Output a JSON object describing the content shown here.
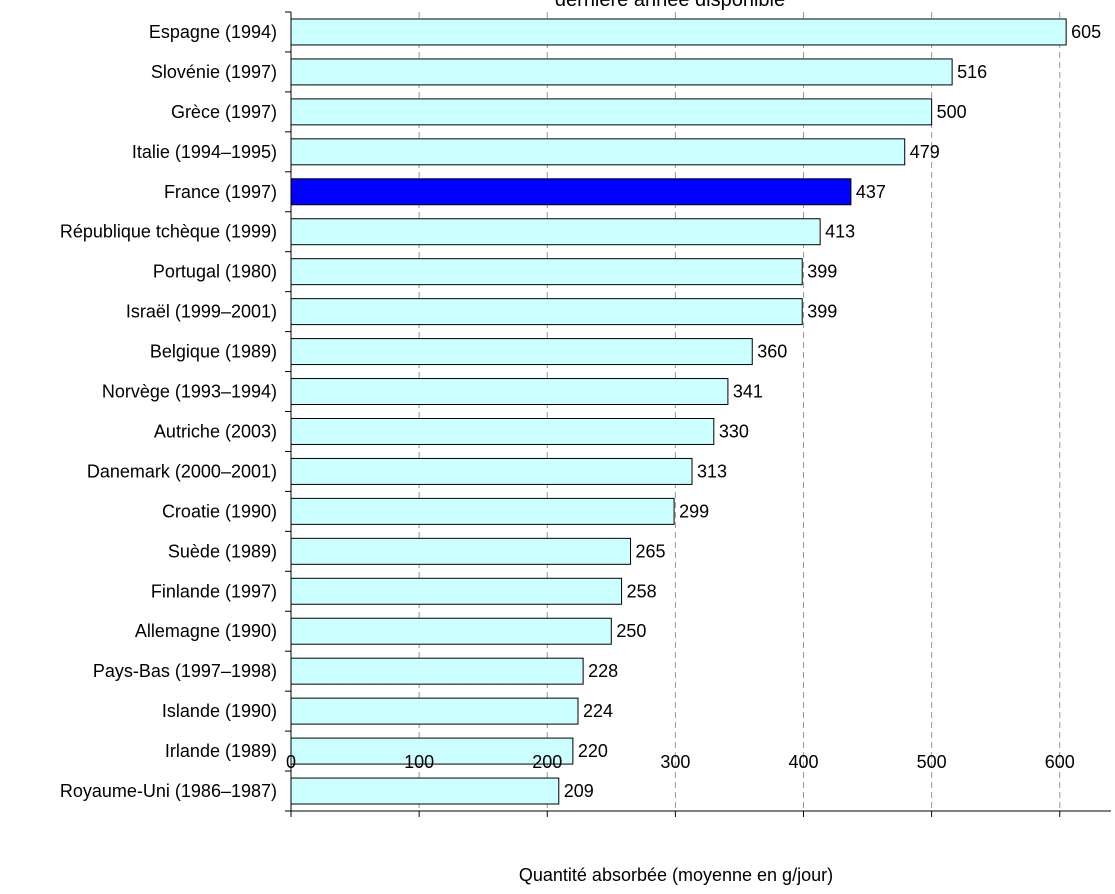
{
  "chart_data": {
    "type": "bar",
    "orientation": "horizontal",
    "title": "dernière année disponible",
    "xlabel": "Quantité absorbée (moyenne en g/jour)",
    "ylabel": "",
    "xlim": [
      0,
      640
    ],
    "xticks": [
      0,
      100,
      200,
      300,
      400,
      500,
      600
    ],
    "grid": "vertical dashed",
    "categories": [
      "Espagne (1994)",
      "Slovénie (1997)",
      "Grèce (1997)",
      "Italie (1994–1995)",
      "France (1997)",
      "République tchèque (1999)",
      "Portugal (1980)",
      "Israël (1999–2001)",
      "Belgique (1989)",
      "Norvège (1993–1994)",
      "Autriche (2003)",
      "Danemark (2000–2001)",
      "Croatie (1990)",
      "Suède (1989)",
      "Finlande (1997)",
      "Allemagne (1990)",
      "Pays-Bas (1997–1998)",
      "Islande (1990)",
      "Irlande (1989)",
      "Royaume-Uni (1986–1987)"
    ],
    "values": [
      605,
      516,
      500,
      479,
      437,
      413,
      399,
      399,
      360,
      341,
      330,
      313,
      299,
      265,
      258,
      250,
      228,
      224,
      220,
      209
    ],
    "highlight": "France (1997)",
    "colors": {
      "bar": "#ccffff",
      "highlight": "#0000ff",
      "bar_edge": "#000000",
      "grid": "#999999"
    }
  }
}
